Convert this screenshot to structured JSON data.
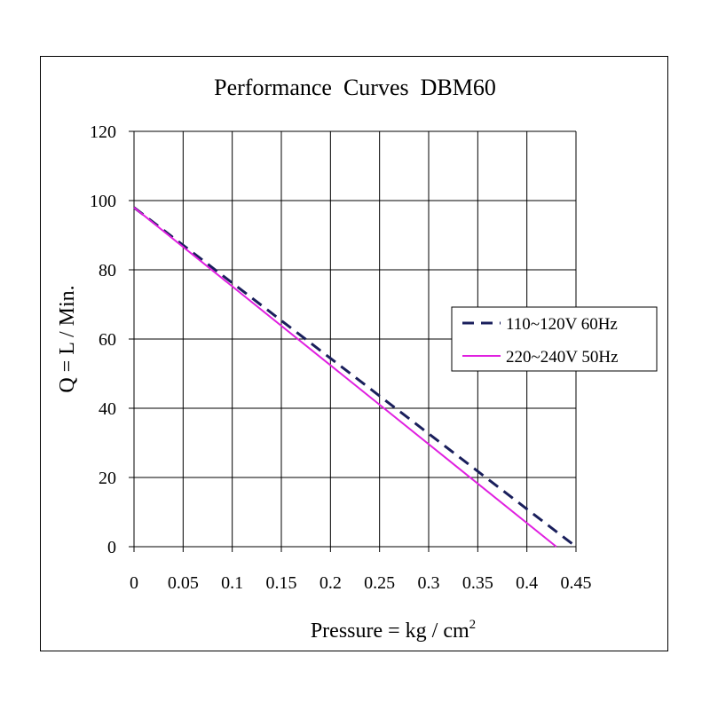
{
  "chart_data": {
    "type": "line",
    "title": "Performance  Curves  DBM60",
    "xlabel": "Pressure = kg / cm",
    "xlabel_superscript": "2",
    "ylabel": "Q = L / Min.",
    "xlim": [
      0,
      0.45
    ],
    "ylim": [
      0,
      120
    ],
    "x_ticks": [
      "0",
      "0.05",
      "0.1",
      "0.15",
      "0.2",
      "0.25",
      "0.3",
      "0.35",
      "0.4",
      "0.45"
    ],
    "y_ticks": [
      "0",
      "20",
      "40",
      "60",
      "80",
      "100",
      "120"
    ],
    "grid": true,
    "legend_position": "right",
    "series": [
      {
        "name": "110~120V 60Hz",
        "color": "#1a1f5c",
        "style": "dashed",
        "x": [
          0,
          0.45
        ],
        "y": [
          98,
          0
        ]
      },
      {
        "name": "220~240V 50Hz",
        "color": "#e020e0",
        "style": "solid",
        "x": [
          0,
          0.43
        ],
        "y": [
          98,
          0
        ]
      }
    ]
  }
}
